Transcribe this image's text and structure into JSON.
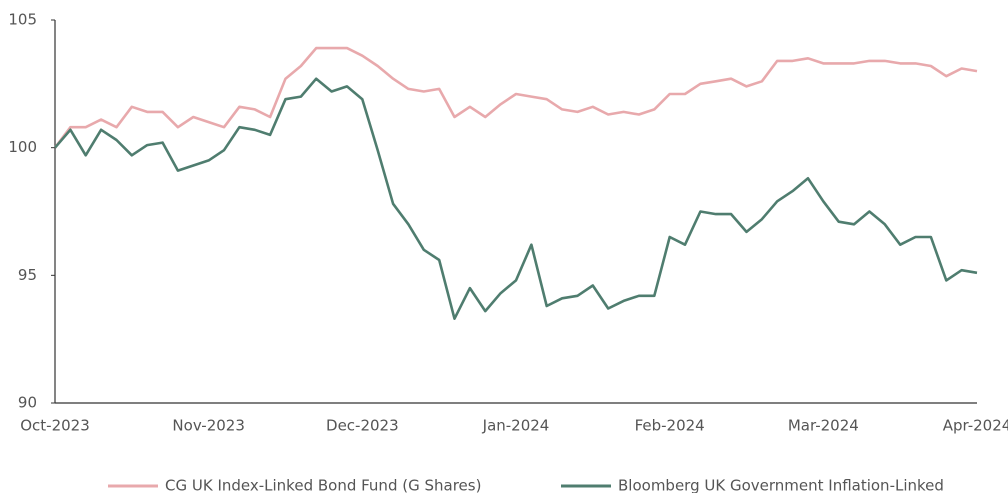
{
  "chart_data": {
    "type": "line",
    "categories": [
      "Oct-2023",
      null,
      null,
      null,
      null,
      null,
      null,
      null,
      null,
      null,
      "Nov-2023",
      null,
      null,
      null,
      null,
      null,
      null,
      null,
      null,
      null,
      "Dec-2023",
      null,
      null,
      null,
      null,
      null,
      null,
      null,
      null,
      null,
      "Jan-2024",
      null,
      null,
      null,
      null,
      null,
      null,
      null,
      null,
      null,
      "Feb-2024",
      null,
      null,
      null,
      null,
      null,
      null,
      null,
      null,
      null,
      "Mar-2024",
      null,
      null,
      null,
      null,
      null,
      null,
      null,
      null,
      null,
      "Apr-2024"
    ],
    "series": [
      {
        "name": "CG UK Index-Linked Bond Fund (G Shares)",
        "color": "#e8a9ac",
        "values": [
          100.0,
          100.8,
          100.8,
          101.1,
          100.8,
          101.6,
          101.4,
          101.4,
          100.8,
          101.2,
          101.0,
          100.8,
          101.6,
          101.5,
          101.2,
          102.7,
          103.2,
          103.9,
          103.9,
          103.9,
          103.6,
          103.2,
          102.7,
          102.3,
          102.2,
          102.3,
          101.2,
          101.6,
          101.2,
          101.7,
          102.1,
          102.0,
          101.9,
          101.5,
          101.4,
          101.6,
          101.3,
          101.4,
          101.3,
          101.5,
          102.1,
          102.1,
          102.5,
          102.6,
          102.7,
          102.4,
          102.6,
          103.4,
          103.4,
          103.5,
          103.3,
          103.3,
          103.3,
          103.4,
          103.4,
          103.3,
          103.3,
          103.2,
          102.8,
          103.1,
          103.0
        ]
      },
      {
        "name": "Bloomberg UK Government Inflation-Linked",
        "color": "#4f7d6f",
        "values": [
          100.0,
          100.7,
          99.7,
          100.7,
          100.3,
          99.7,
          100.1,
          100.2,
          99.1,
          99.3,
          99.5,
          99.9,
          100.8,
          100.7,
          100.5,
          101.9,
          102.0,
          102.7,
          102.2,
          102.4,
          101.9,
          99.9,
          97.8,
          97.0,
          96.0,
          95.6,
          93.3,
          94.5,
          93.6,
          94.3,
          94.8,
          96.2,
          93.8,
          94.1,
          94.2,
          94.6,
          93.7,
          94.0,
          94.2,
          94.2,
          96.5,
          96.2,
          97.5,
          97.4,
          97.4,
          96.7,
          97.2,
          97.9,
          98.3,
          98.8,
          97.9,
          97.1,
          97.0,
          97.5,
          97.0,
          96.2,
          96.5,
          96.5,
          94.8,
          95.2,
          95.1
        ]
      }
    ],
    "ylim": [
      90,
      105
    ],
    "yticks": [
      90,
      95,
      100,
      105
    ]
  }
}
